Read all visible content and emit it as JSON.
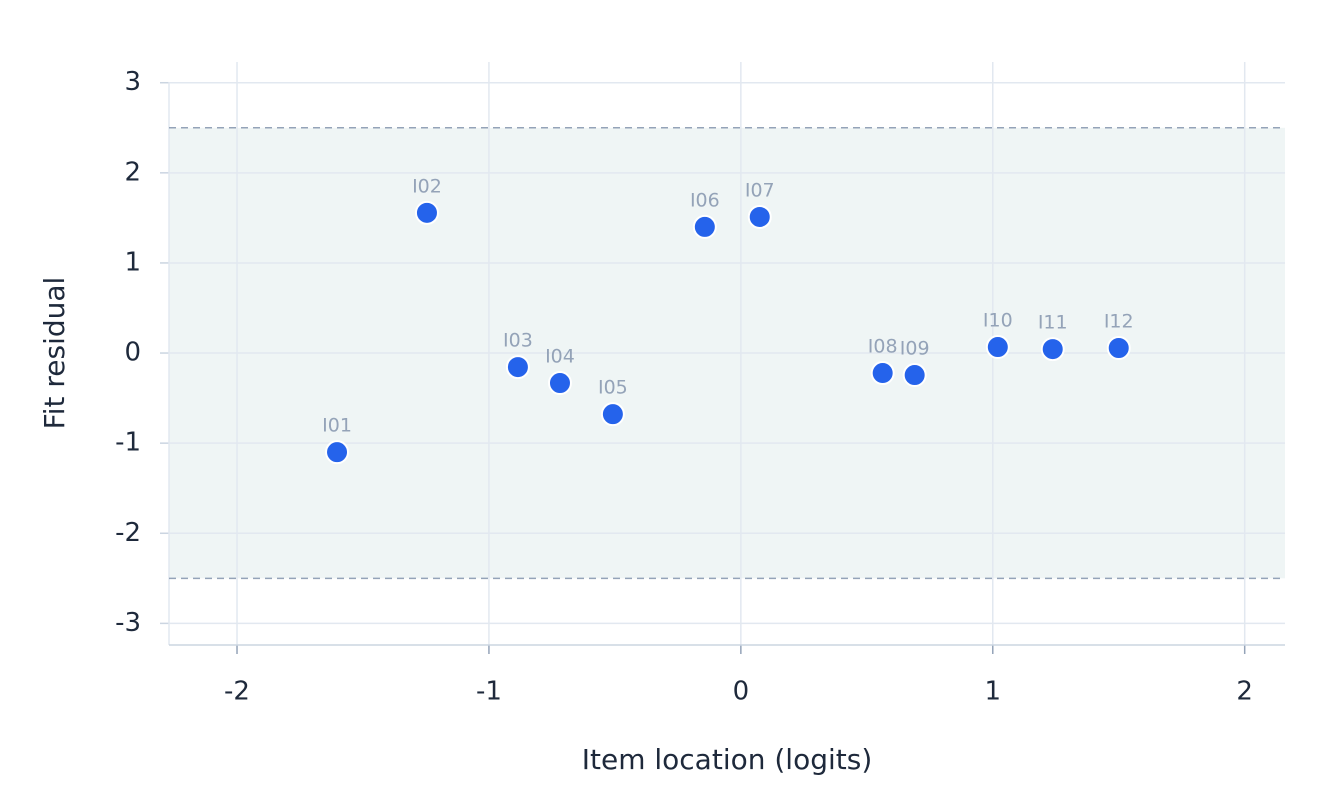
{
  "chart_data": {
    "type": "scatter",
    "xlabel": "Item location (logits)",
    "ylabel": "Fit residual",
    "point_labels": [
      "I01",
      "I02",
      "I03",
      "I04",
      "I05",
      "I06",
      "I07",
      "I08",
      "I09",
      "I10",
      "I11",
      "I12"
    ],
    "x": [
      -1.603,
      -1.246,
      -0.885,
      -0.718,
      -0.508,
      -0.143,
      0.075,
      0.563,
      0.69,
      1.02,
      1.238,
      1.5
    ],
    "values": [
      -1.1,
      1.556,
      -0.156,
      -0.333,
      -0.678,
      1.4,
      1.51,
      -0.222,
      -0.244,
      0.067,
      0.044,
      0.056
    ],
    "color": "#2563eb",
    "xlim": [
      -2.27,
      2.16
    ],
    "xticks": [
      -2,
      -1,
      0,
      1,
      2
    ],
    "ylim": [
      -3.24,
      3.23
    ],
    "yticks": [
      -3,
      -2,
      -1,
      0,
      1,
      2,
      3
    ],
    "reference_lines": [
      -2.5,
      2.5
    ],
    "grid": true
  }
}
